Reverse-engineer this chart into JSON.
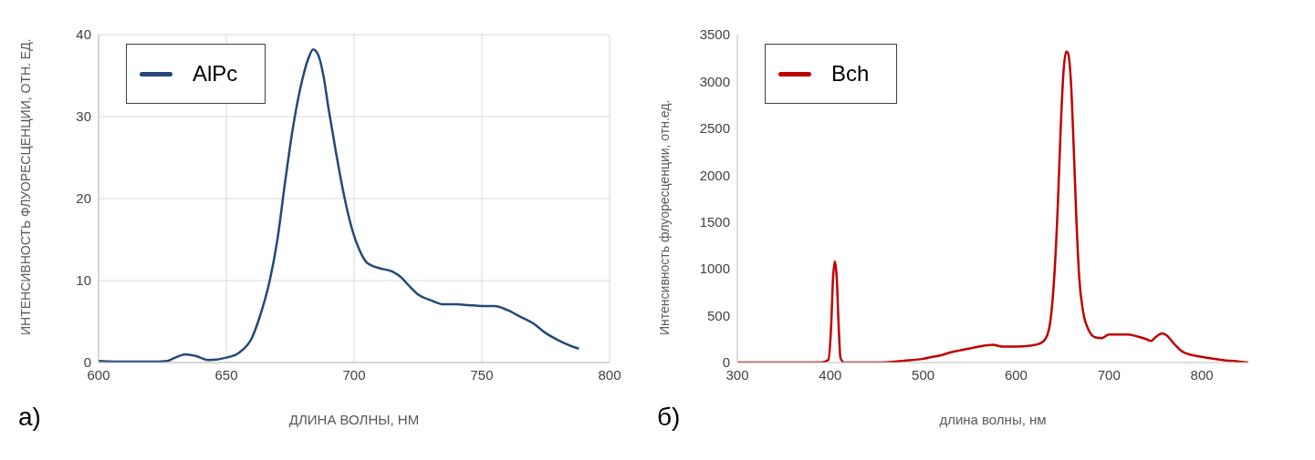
{
  "chart_data": [
    {
      "type": "line",
      "xlabel": "ДЛИНА ВОЛНЫ, НМ",
      "ylabel": "ИНТЕНСИВНОСТЬ ФЛУОРЕСЦЕНЦИИ, ОТН. ЕД.",
      "annotations": [
        "а)"
      ],
      "xlim": [
        600,
        800
      ],
      "xticks": [
        600,
        650,
        700,
        750,
        800
      ],
      "ylim": [
        0,
        40
      ],
      "yticks": [
        0,
        10,
        20,
        30,
        40
      ],
      "grid": true,
      "legend": "top left",
      "x": [
        600,
        610,
        620,
        627,
        630,
        634,
        638,
        643,
        650,
        655,
        660,
        663,
        667,
        670,
        673,
        676,
        679,
        682,
        684,
        686,
        688,
        690,
        693,
        696,
        699,
        702,
        705,
        710,
        715,
        718,
        722,
        725,
        730,
        735,
        740,
        745,
        750,
        755,
        760,
        765,
        770,
        775,
        780,
        785,
        788
      ],
      "series": [
        {
          "name": "AlPc",
          "color": "#24487a",
          "values": [
            0.2,
            0.1,
            0.1,
            0.2,
            0.6,
            1.0,
            0.8,
            0.3,
            0.6,
            1.2,
            3,
            5.5,
            10,
            15,
            22,
            28.5,
            33.5,
            37,
            38.2,
            37.5,
            35,
            31,
            25.5,
            20.5,
            16.5,
            13.8,
            12.2,
            11.5,
            11.1,
            10.5,
            9.2,
            8.3,
            7.6,
            7.1,
            7.1,
            7.0,
            6.9,
            6.9,
            6.4,
            5.6,
            4.8,
            3.6,
            2.7,
            2.0,
            1.7
          ]
        }
      ]
    },
    {
      "type": "line",
      "xlabel": "длина волны, нм",
      "ylabel": "Интенсивность флуоресценции, отн.ед.",
      "annotations": [
        "б)"
      ],
      "xlim": [
        300,
        850
      ],
      "xticks": [
        300,
        400,
        500,
        600,
        700,
        800
      ],
      "ylim": [
        0,
        3500
      ],
      "yticks": [
        0,
        500,
        1000,
        1500,
        2000,
        2500,
        3000,
        3500
      ],
      "grid": false,
      "legend": "top left",
      "x": [
        300,
        390,
        398,
        401,
        403,
        405,
        407,
        409,
        411,
        415,
        450,
        480,
        500,
        510,
        520,
        530,
        540,
        550,
        560,
        575,
        585,
        600,
        615,
        625,
        632,
        637,
        641,
        645,
        648,
        651,
        654,
        656,
        659,
        662,
        665,
        668,
        672,
        678,
        685,
        692,
        700,
        710,
        720,
        730,
        740,
        745,
        750,
        757,
        762,
        770,
        780,
        800,
        820,
        840,
        850
      ],
      "series": [
        {
          "name": "Bch",
          "color": "#c00000",
          "values": [
            0,
            0,
            30,
            400,
            900,
            1080,
            900,
            400,
            50,
            0,
            0,
            20,
            40,
            60,
            80,
            110,
            130,
            150,
            170,
            190,
            170,
            170,
            180,
            200,
            260,
            450,
            900,
            1700,
            2500,
            3100,
            3320,
            3300,
            3000,
            2300,
            1500,
            900,
            550,
            350,
            270,
            260,
            300,
            300,
            300,
            280,
            250,
            230,
            270,
            310,
            290,
            200,
            110,
            60,
            30,
            10,
            0
          ]
        }
      ]
    }
  ]
}
